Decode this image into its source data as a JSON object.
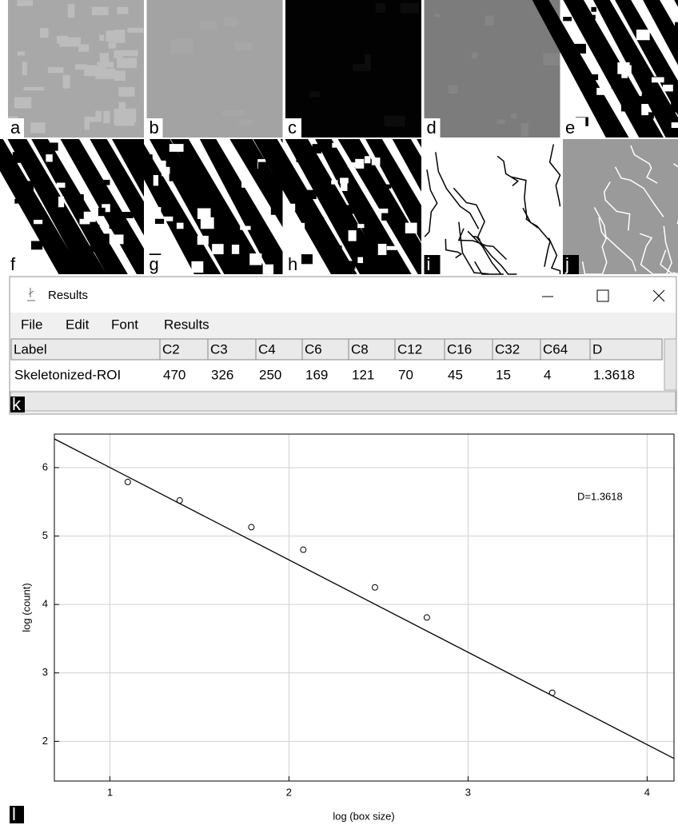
{
  "panels": [
    {
      "label": "a"
    },
    {
      "label": "b"
    },
    {
      "label": "c"
    },
    {
      "label": "d"
    },
    {
      "label": "e"
    },
    {
      "label": "f"
    },
    {
      "label": "g"
    },
    {
      "label": "h"
    },
    {
      "label": "i"
    },
    {
      "label": "j"
    }
  ],
  "results_window": {
    "title": "Results",
    "menu": [
      "File",
      "Edit",
      "Font",
      "Results"
    ],
    "table": {
      "header": [
        "Label",
        "C2",
        "C3",
        "C4",
        "C6",
        "C8",
        "C12",
        "C16",
        "C32",
        "C64",
        "D"
      ],
      "rows": [
        [
          "Skeletonized-ROI",
          470,
          326,
          250,
          169,
          121,
          70,
          45,
          15,
          4,
          1.3618
        ]
      ]
    },
    "label": "k"
  },
  "chart_data": {
    "type": "scatter",
    "panel_label": "l",
    "x_label": "log (box size)",
    "y_label": "log (count)",
    "annotation": "D=1.3618",
    "xlim": [
      0.69,
      4.15
    ],
    "ylim": [
      1.42,
      6.49
    ],
    "xticks": [
      1,
      2,
      3,
      4
    ],
    "yticks": [
      2,
      3,
      4,
      5,
      6
    ],
    "grid": true,
    "series": [
      {
        "kind": "points",
        "color": "#000000",
        "x": [
          1.1,
          1.39,
          1.79,
          2.08,
          2.48,
          2.77,
          3.47
        ],
        "values": [
          5.79,
          5.52,
          5.13,
          4.8,
          4.25,
          3.81,
          2.71
        ]
      },
      {
        "kind": "line",
        "color": "#000000",
        "x": [
          0.69,
          4.15
        ],
        "values": [
          6.42,
          1.75
        ]
      }
    ]
  }
}
